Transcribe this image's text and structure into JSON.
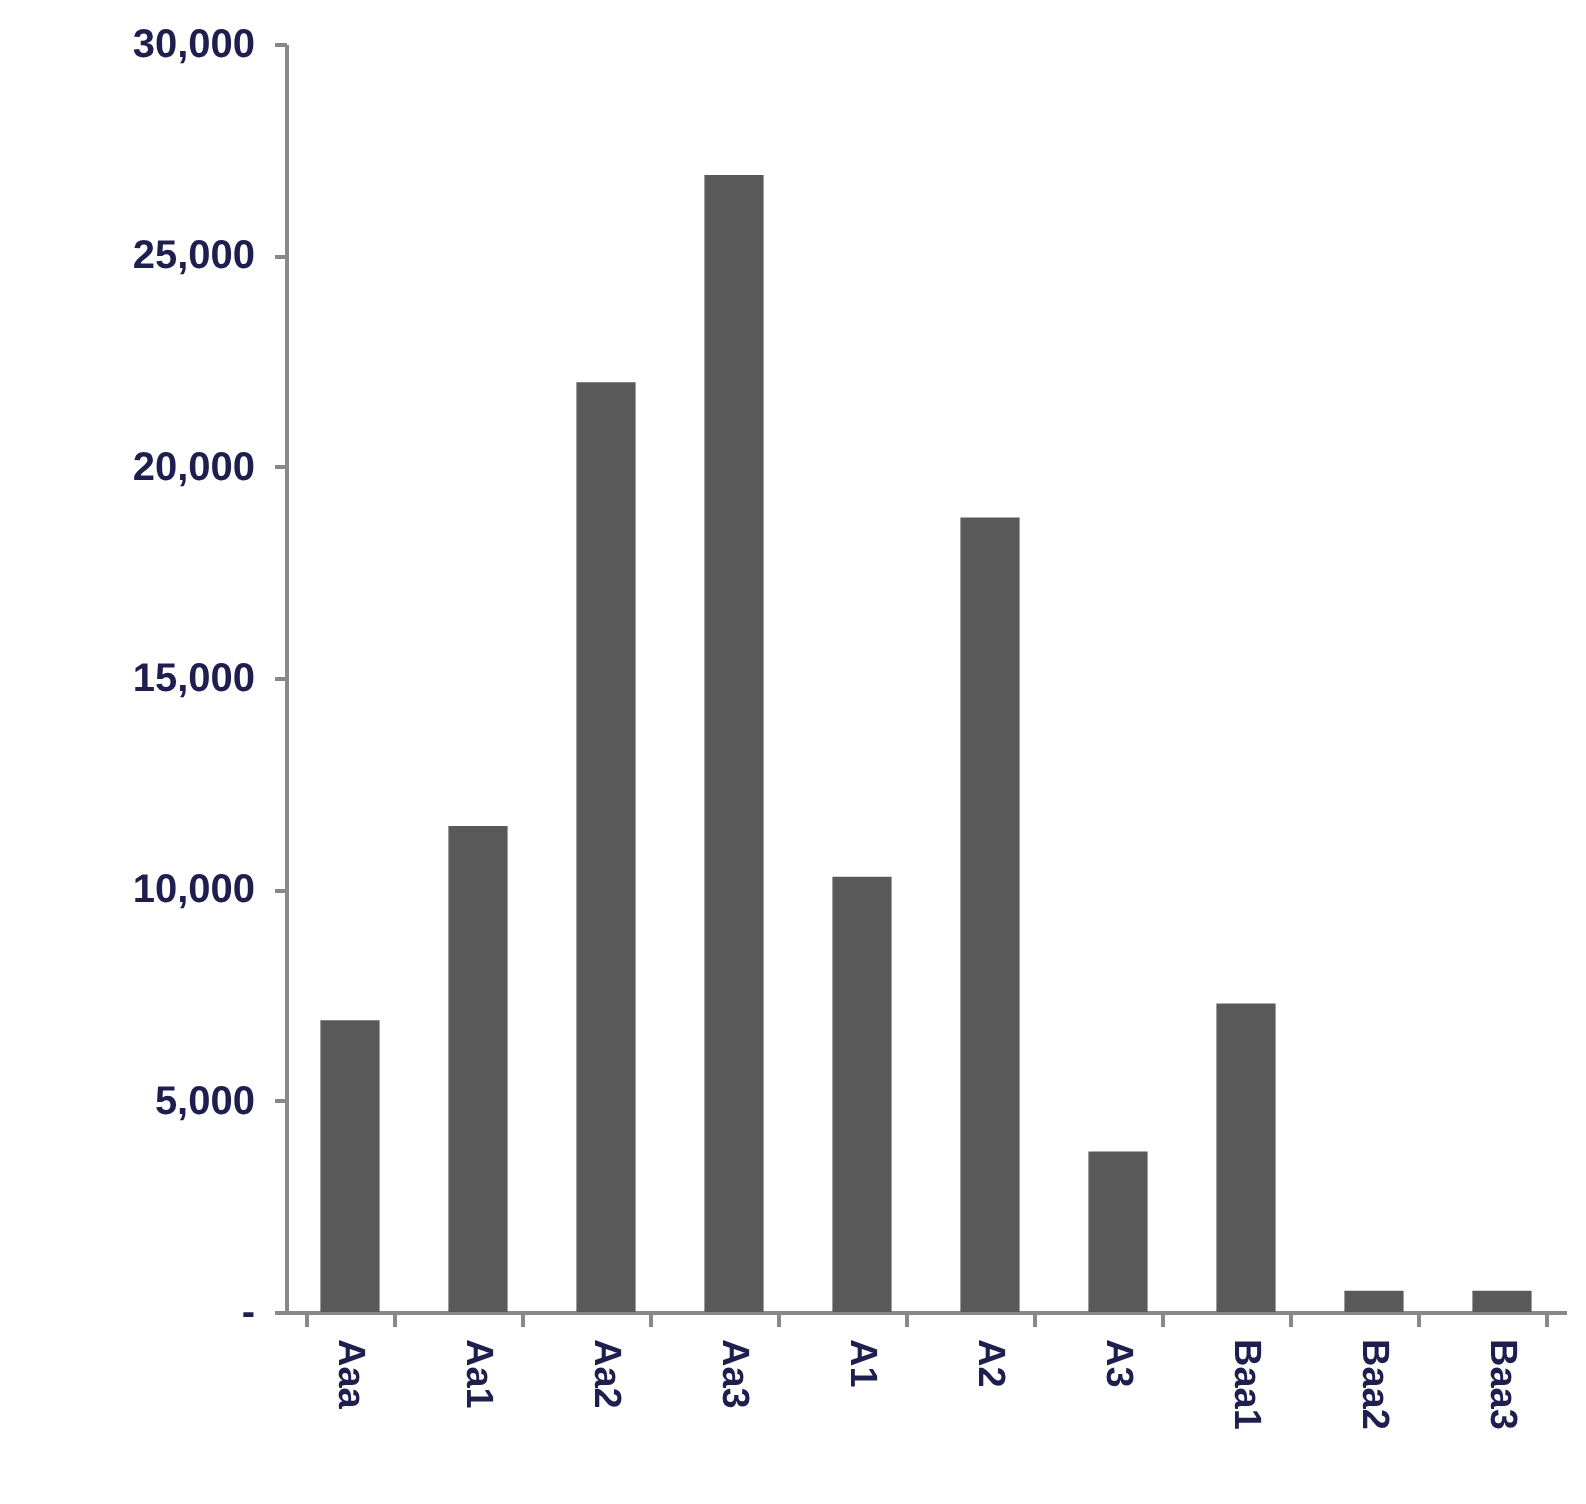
{
  "chart_data": {
    "type": "bar",
    "categories": [
      "Aaa",
      "Aa1",
      "Aa2",
      "Aa3",
      "A1",
      "A2",
      "A3",
      "Baa1",
      "Baa2",
      "Baa3"
    ],
    "values": [
      6900,
      11500,
      22000,
      26900,
      10300,
      18800,
      3800,
      7300,
      500,
      500
    ],
    "color": "#595959",
    "ylim": [
      0,
      30000
    ],
    "yticks": [
      {
        "value": 0,
        "label": "-"
      },
      {
        "value": 5000,
        "label": "5,000"
      },
      {
        "value": 10000,
        "label": "10,000"
      },
      {
        "value": 15000,
        "label": "15,000"
      },
      {
        "value": 20000,
        "label": "20,000"
      },
      {
        "value": 25000,
        "label": "25,000"
      },
      {
        "value": 30000,
        "label": "30,000"
      }
    ],
    "grid": false
  }
}
